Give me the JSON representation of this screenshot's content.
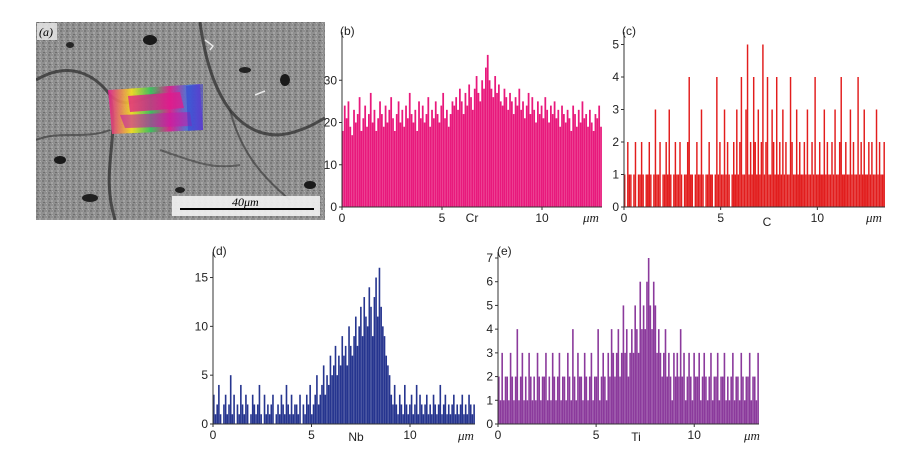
{
  "colors": {
    "Cr": "#e8197c",
    "C": "#e21d1d",
    "Nb": "#26358f",
    "Ti": "#8b3a9c"
  },
  "sem": {
    "panel_label": "(a)",
    "scale_label": "40μm"
  },
  "chart_data": [
    {
      "panel": "(b)",
      "type": "bar",
      "element": "Cr",
      "unit": "μm",
      "xlim": [
        0,
        13.0
      ],
      "ylim": [
        0,
        40
      ],
      "xticks": [
        0,
        5,
        10
      ],
      "yticks": [
        0,
        10,
        20,
        30
      ],
      "values": [
        18,
        24,
        21,
        25,
        19,
        17,
        23,
        20,
        22,
        26,
        18,
        21,
        24,
        19,
        22,
        27,
        20,
        23,
        18,
        21,
        25,
        22,
        19,
        24,
        20,
        23,
        26,
        21,
        18,
        22,
        25,
        20,
        23,
        19,
        24,
        21,
        27,
        22,
        20,
        23,
        18,
        25,
        21,
        24,
        20,
        22,
        26,
        19,
        23,
        21,
        25,
        22,
        20,
        24,
        27,
        21,
        23,
        19,
        22,
        25,
        24,
        26,
        23,
        28,
        25,
        22,
        27,
        24,
        29,
        26,
        23,
        28,
        31,
        27,
        25,
        30,
        28,
        33,
        36,
        30,
        28,
        26,
        31,
        27,
        29,
        25,
        24,
        28,
        26,
        23,
        27,
        25,
        22,
        26,
        24,
        28,
        23,
        25,
        21,
        24,
        27,
        22,
        26,
        23,
        20,
        25,
        22,
        24,
        21,
        26,
        23,
        20,
        24,
        22,
        25,
        21,
        23,
        19,
        24,
        22,
        20,
        23,
        21,
        18,
        24,
        22,
        19,
        23,
        20,
        25,
        21,
        22,
        19,
        23,
        20,
        18,
        22,
        21,
        24,
        19
      ]
    },
    {
      "panel": "(c)",
      "type": "bar",
      "element": "C",
      "unit": "μm",
      "xlim": [
        0,
        13.5
      ],
      "ylim": [
        0,
        5.2
      ],
      "xticks": [
        0,
        5,
        10
      ],
      "yticks": [
        0,
        1,
        2,
        3,
        4,
        5
      ],
      "values": [
        1,
        0,
        2,
        1,
        1,
        0,
        1,
        2,
        0,
        1,
        1,
        2,
        1,
        0,
        1,
        1,
        2,
        1,
        0,
        1,
        3,
        1,
        1,
        2,
        0,
        1,
        1,
        2,
        1,
        3,
        1,
        0,
        1,
        2,
        1,
        1,
        2,
        1,
        0,
        1,
        1,
        2,
        4,
        1,
        1,
        0,
        1,
        2,
        1,
        1,
        3,
        1,
        0,
        1,
        1,
        2,
        1,
        1,
        0,
        1,
        4,
        1,
        2,
        1,
        1,
        3,
        1,
        2,
        1,
        0,
        1,
        2,
        1,
        3,
        1,
        2,
        4,
        1,
        1,
        3,
        5,
        1,
        2,
        1,
        4,
        2,
        1,
        3,
        1,
        2,
        5,
        1,
        2,
        4,
        1,
        1,
        3,
        2,
        1,
        4,
        1,
        2,
        1,
        3,
        1,
        2,
        1,
        1,
        4,
        2,
        1,
        1,
        3,
        1,
        2,
        1,
        1,
        2,
        1,
        3,
        1,
        1,
        2,
        1,
        4,
        1,
        1,
        2,
        1,
        1,
        3,
        1,
        2,
        1,
        1,
        2,
        1,
        3,
        1,
        1,
        2,
        4,
        1,
        1,
        2,
        1,
        1,
        3,
        1,
        2,
        1,
        1,
        4,
        1,
        2,
        1,
        3,
        1,
        1,
        2,
        1,
        2,
        1,
        1,
        3,
        1,
        2,
        1,
        1,
        2
      ]
    },
    {
      "panel": "(d)",
      "type": "bar",
      "element": "Nb",
      "unit": "μm",
      "xlim": [
        0,
        13.3
      ],
      "ylim": [
        0,
        17
      ],
      "xticks": [
        0,
        5,
        10
      ],
      "yticks": [
        0,
        5,
        10,
        15
      ],
      "values": [
        3,
        1,
        2,
        4,
        1,
        0,
        2,
        3,
        1,
        2,
        5,
        1,
        3,
        0,
        2,
        1,
        4,
        2,
        1,
        3,
        2,
        0,
        1,
        3,
        2,
        1,
        2,
        4,
        1,
        0,
        3,
        1,
        2,
        1,
        2,
        3,
        0,
        1,
        2,
        1,
        3,
        2,
        1,
        4,
        2,
        1,
        3,
        1,
        2,
        2,
        1,
        3,
        0,
        2,
        1,
        3,
        2,
        4,
        1,
        2,
        3,
        5,
        2,
        3,
        4,
        6,
        3,
        5,
        4,
        7,
        5,
        6,
        8,
        5,
        7,
        6,
        9,
        7,
        8,
        6,
        10,
        8,
        7,
        9,
        11,
        8,
        10,
        12,
        9,
        13,
        11,
        10,
        14,
        12,
        9,
        13,
        15,
        11,
        16,
        12,
        10,
        9,
        7,
        6,
        5,
        3,
        2,
        4,
        2,
        1,
        3,
        2,
        1,
        4,
        2,
        1,
        2,
        3,
        1,
        2,
        4,
        1,
        3,
        2,
        1,
        2,
        3,
        1,
        2,
        1,
        3,
        2,
        1,
        2,
        4,
        1,
        2,
        3,
        1,
        2,
        1,
        2,
        3,
        1,
        2,
        1,
        2,
        3,
        1,
        2,
        1,
        3,
        2,
        1,
        2
      ]
    },
    {
      "panel": "(e)",
      "type": "bar",
      "element": "Ti",
      "unit": "μm",
      "xlim": [
        0,
        13.3
      ],
      "ylim": [
        0,
        7
      ],
      "xticks": [
        0,
        5,
        10
      ],
      "yticks": [
        0,
        1,
        2,
        3,
        4,
        5,
        6,
        7
      ],
      "values": [
        2,
        1,
        3,
        1,
        2,
        2,
        1,
        3,
        2,
        1,
        2,
        4,
        1,
        2,
        3,
        1,
        2,
        1,
        3,
        2,
        1,
        2,
        1,
        3,
        2,
        1,
        2,
        2,
        3,
        1,
        2,
        1,
        3,
        2,
        1,
        2,
        3,
        1,
        2,
        2,
        1,
        3,
        2,
        1,
        4,
        2,
        1,
        3,
        2,
        2,
        1,
        3,
        2,
        1,
        2,
        3,
        1,
        2,
        2,
        4,
        1,
        2,
        3,
        2,
        1,
        3,
        2,
        4,
        3,
        2,
        3,
        4,
        2,
        3,
        5,
        3,
        4,
        2,
        3,
        4,
        3,
        5,
        4,
        3,
        6,
        4,
        5,
        4,
        6,
        7,
        5,
        4,
        6,
        5,
        3,
        4,
        3,
        2,
        3,
        4,
        2,
        3,
        2,
        1,
        3,
        2,
        3,
        2,
        4,
        2,
        3,
        1,
        2,
        3,
        2,
        1,
        3,
        2,
        2,
        3,
        1,
        2,
        3,
        2,
        1,
        2,
        3,
        1,
        2,
        2,
        3,
        1,
        2,
        2,
        3,
        1,
        2,
        1,
        2,
        3,
        1,
        2,
        2,
        1,
        3,
        2,
        1,
        2,
        2,
        3,
        1,
        2,
        2,
        1,
        3
      ]
    }
  ]
}
